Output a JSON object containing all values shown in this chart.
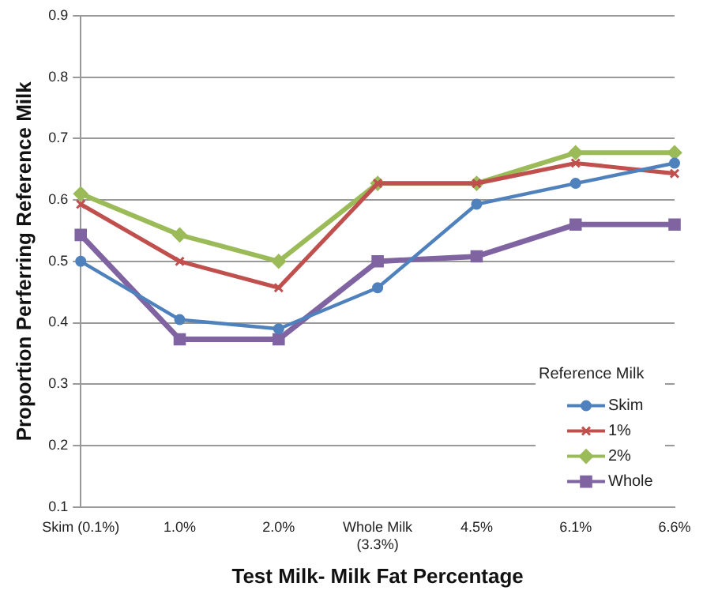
{
  "chart_data": {
    "type": "line",
    "xlabel": "Test Milk- Milk Fat Percentage",
    "ylabel": "Proportion Perferring Reference Milk",
    "legend_title": "Reference Milk",
    "categories": [
      "Skim (0.1%)",
      "1.0%",
      "2.0%",
      "Whole Milk (3.3%)",
      "4.5%",
      "6.1%",
      "6.6%"
    ],
    "series": [
      {
        "name": "Skim",
        "color": "#4f81bd",
        "marker": "circle",
        "values": [
          0.5,
          0.405,
          0.39,
          0.457,
          0.593,
          0.627,
          0.66
        ]
      },
      {
        "name": "1%",
        "color": "#c0504d",
        "marker": "cross",
        "values": [
          0.593,
          0.5,
          0.457,
          0.627,
          0.627,
          0.66,
          0.643
        ]
      },
      {
        "name": "2%",
        "color": "#9bbb59",
        "marker": "diamond",
        "values": [
          0.61,
          0.543,
          0.5,
          0.627,
          0.627,
          0.677,
          0.677
        ]
      },
      {
        "name": "Whole",
        "color": "#8064a2",
        "marker": "square",
        "values": [
          0.543,
          0.373,
          0.373,
          0.5,
          0.508,
          0.56,
          0.56
        ]
      }
    ],
    "ylim": [
      0.1,
      0.9
    ],
    "yticks": [
      0.1,
      0.2,
      0.3,
      0.4,
      0.5,
      0.6,
      0.7,
      0.8,
      0.9
    ],
    "grid": "y",
    "legend": "bottom right"
  }
}
